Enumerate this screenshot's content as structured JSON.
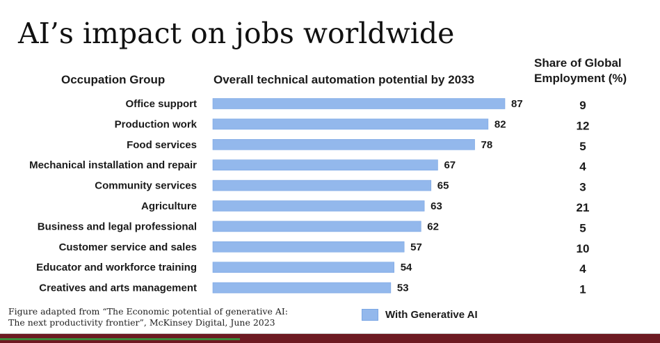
{
  "title": "AI’s impact on jobs worldwide",
  "headers": {
    "occupation": "Occupation Group",
    "automation": "Overall technical automation potential by 2033",
    "share_line1": "Share of Global",
    "share_line2": "Employment (%)"
  },
  "chart_data": {
    "type": "bar",
    "orientation": "horizontal",
    "title": "AI’s impact on jobs worldwide",
    "xlabel": "Overall technical automation potential by 2033",
    "ylabel": "Occupation Group",
    "xlim": [
      0,
      100
    ],
    "grid": false,
    "legend_position": "bottom",
    "categories": [
      "Office support",
      "Production work",
      "Food services",
      "Mechanical installation and repair",
      "Community services",
      "Agriculture",
      "Business and legal professional",
      "Customer service and sales",
      "Educator and workforce training",
      "Creatives and arts management"
    ],
    "series": [
      {
        "name": "With Generative AI",
        "values": [
          87,
          82,
          78,
          67,
          65,
          63,
          62,
          57,
          54,
          53
        ],
        "color": "#93b8ec"
      }
    ],
    "share_of_global_employment": [
      9,
      12,
      5,
      4,
      3,
      21,
      5,
      10,
      4,
      1
    ]
  },
  "legend": {
    "label": "With Generative AI",
    "color": "#93b8ec"
  },
  "source": {
    "line1": "Figure adapted from “The Economic potential of generative AI:",
    "line2": "The next productivity frontier”, McKinsey Digital, June 2023"
  },
  "colors": {
    "bar": "#93b8ec",
    "bar_border": "#7aa6e4",
    "bottom_bar": "#6d1a22"
  }
}
